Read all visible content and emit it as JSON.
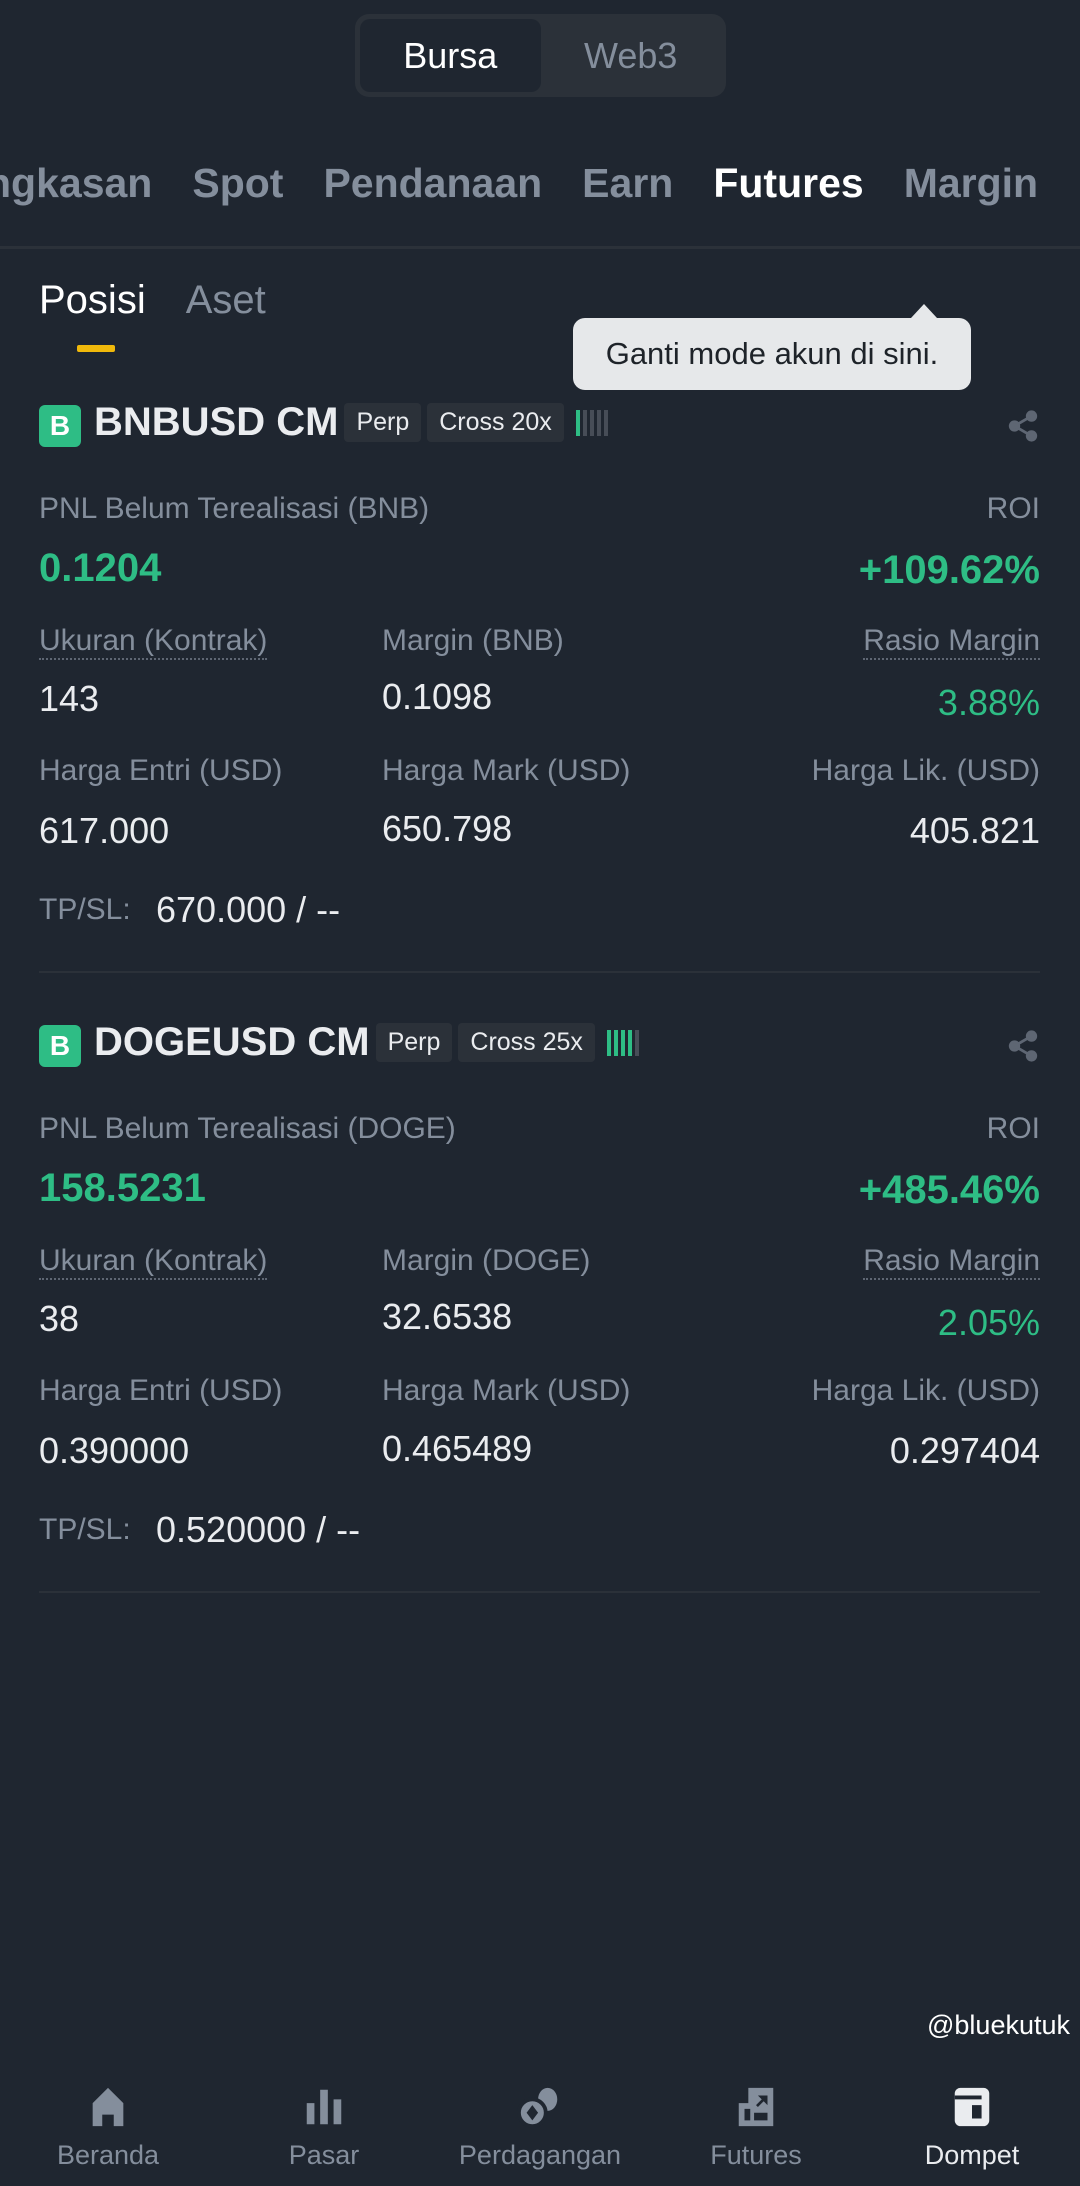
{
  "top_toggle": {
    "options": [
      "Bursa",
      "Web3"
    ],
    "selected": "Bursa"
  },
  "tabs": [
    "Ringkasan",
    "Spot",
    "Pendanaan",
    "Earn",
    "Futures",
    "Margin"
  ],
  "tabs_visible": [
    "ngkasan",
    "Spot",
    "Pendanaan",
    "Earn",
    "Futures",
    "Margin"
  ],
  "active_tab": "Futures",
  "subtabs": [
    "Posisi",
    "Aset"
  ],
  "active_subtab": "Posisi",
  "tooltip": "Ganti mode akun di sini.",
  "positions": [
    {
      "badge": "B",
      "symbol": "BNBUSD CM",
      "type": "Perp",
      "margin_mode": "Cross 20x",
      "adl_level": 1,
      "pnl_label": "PNL Belum Terealisasi (BNB)",
      "pnl": "0.1204",
      "roi_label": "ROI",
      "roi": "+109.62%",
      "size_label": "Ukuran (Kontrak)",
      "size": "143",
      "margin_label": "Margin (BNB)",
      "margin": "0.1098",
      "ratio_label": "Rasio Margin",
      "ratio": "3.88%",
      "entry_label": "Harga Entri (USD)",
      "entry": "617.000",
      "mark_label": "Harga Mark (USD)",
      "mark": "650.798",
      "liq_label": "Harga Lik. (USD)",
      "liq": "405.821",
      "tpsl_label": "TP/SL:",
      "tpsl": "670.000 / --"
    },
    {
      "badge": "B",
      "symbol": "DOGEUSD CM",
      "type": "Perp",
      "margin_mode": "Cross 25x",
      "adl_level": 4,
      "pnl_label": "PNL Belum Terealisasi (DOGE)",
      "pnl": "158.5231",
      "roi_label": "ROI",
      "roi": "+485.46%",
      "size_label": "Ukuran (Kontrak)",
      "size": "38",
      "margin_label": "Margin (DOGE)",
      "margin": "32.6538",
      "ratio_label": "Rasio Margin",
      "ratio": "2.05%",
      "entry_label": "Harga Entri (USD)",
      "entry": "0.390000",
      "mark_label": "Harga Mark (USD)",
      "mark": "0.465489",
      "liq_label": "Harga Lik. (USD)",
      "liq": "0.297404",
      "tpsl_label": "TP/SL:",
      "tpsl": "0.520000 / --"
    }
  ],
  "bottom_nav": [
    {
      "label": "Beranda",
      "icon": "home-icon"
    },
    {
      "label": "Pasar",
      "icon": "bar-chart-icon"
    },
    {
      "label": "Perdagangan",
      "icon": "trade-coins-icon"
    },
    {
      "label": "Futures",
      "icon": "futures-icon"
    },
    {
      "label": "Dompet",
      "icon": "wallet-icon",
      "active": true
    }
  ],
  "watermark": "@bluekutuk",
  "colors": {
    "background": "#1f2630",
    "positive": "#2ebd85",
    "accent": "#f0b90b",
    "muted": "#848e9c"
  }
}
